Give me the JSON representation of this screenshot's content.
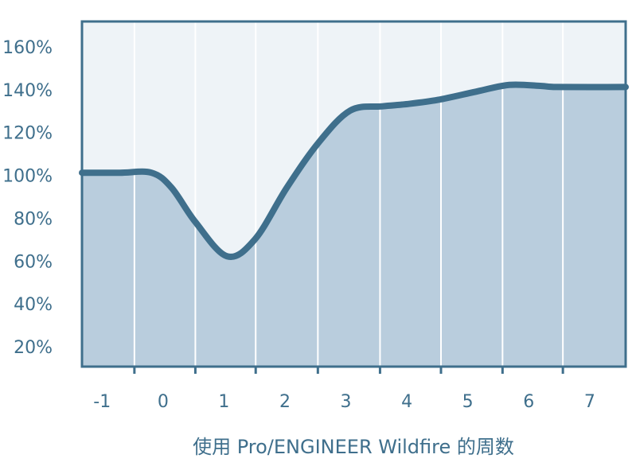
{
  "chart_data": {
    "type": "area",
    "x_label": "使用 Pro/ENGINEER Wildfire 的周数",
    "x": [
      -1.33,
      -0.71,
      -0.19,
      0.14,
      0.53,
      1.05,
      1.51,
      2.03,
      2.55,
      3.07,
      3.6,
      3.99,
      4.51,
      5.16,
      5.68,
      6.21,
      6.47,
      7.59
    ],
    "values": [
      102,
      102,
      102,
      95,
      79,
      63,
      71,
      95,
      116,
      131,
      133,
      134,
      136,
      140,
      143,
      142.5,
      142,
      142
    ],
    "line_color": "#3f6f8c",
    "fill_color": "#b9cddd",
    "background": "#eef3f7",
    "xlim": [
      -1.33,
      7.59
    ],
    "xticks": [
      {
        "value": -1,
        "label": "-1"
      },
      0,
      1,
      2,
      3,
      4,
      5,
      6,
      7
    ],
    "xminorticks": [
      -0.47,
      0.53,
      1.52,
      2.54,
      3.56,
      4.56,
      5.57,
      6.56
    ],
    "ylim": [
      11.5,
      172.6
    ],
    "yticks": [
      {
        "value": 20,
        "label": "20%"
      },
      {
        "value": 40,
        "label": "40%"
      },
      {
        "value": 60,
        "label": "60%"
      },
      {
        "value": 80,
        "label": "80%"
      },
      {
        "value": 100,
        "label": "100%"
      },
      {
        "value": 120,
        "label": "120%"
      },
      {
        "value": 140,
        "label": "140%"
      },
      {
        "value": 160,
        "label": "160%"
      }
    ]
  }
}
